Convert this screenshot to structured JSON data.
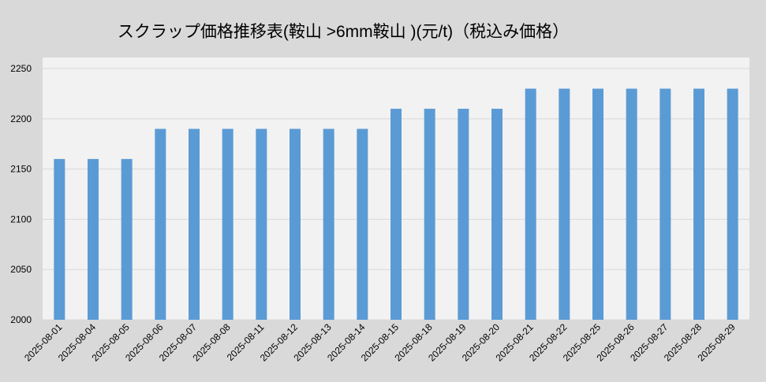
{
  "chart_data": {
    "type": "bar",
    "title": "スクラップ価格推移表(鞍山 >6mm鞍山 )(元/t)（税込み価格）",
    "categories": [
      "2025-08-01",
      "2025-08-04",
      "2025-08-05",
      "2025-08-06",
      "2025-08-07",
      "2025-08-08",
      "2025-08-11",
      "2025-08-12",
      "2025-08-13",
      "2025-08-14",
      "2025-08-15",
      "2025-08-18",
      "2025-08-19",
      "2025-08-20",
      "2025-08-21",
      "2025-08-22",
      "2025-08-25",
      "2025-08-26",
      "2025-08-27",
      "2025-08-28",
      "2025-08-29"
    ],
    "values": [
      2160,
      2160,
      2160,
      2190,
      2190,
      2190,
      2190,
      2190,
      2190,
      2190,
      2210,
      2210,
      2210,
      2210,
      2230,
      2230,
      2230,
      2230,
      2230,
      2230,
      2230
    ],
    "color": "#5b9bd5",
    "ylim": [
      2000,
      2261
    ],
    "yticks": [
      2000,
      2050,
      2100,
      2150,
      2200,
      2250
    ],
    "grid": true
  }
}
